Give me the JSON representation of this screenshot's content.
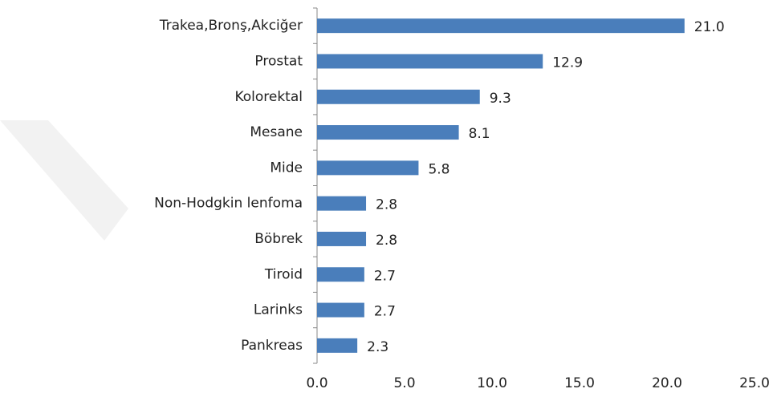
{
  "chart_data": {
    "type": "bar",
    "orientation": "horizontal",
    "categories": [
      "Trakea,Bronş,Akciğer",
      "Prostat",
      "Kolorektal",
      "Mesane",
      "Mide",
      "Non-Hodgkin lenfoma",
      "Böbrek",
      "Tiroid",
      "Larinks",
      "Pankreas"
    ],
    "values": [
      21.0,
      12.9,
      9.3,
      8.1,
      5.8,
      2.8,
      2.8,
      2.7,
      2.7,
      2.3
    ],
    "value_labels": [
      "21.0",
      "12.9",
      "9.3",
      "8.1",
      "5.8",
      "2.8",
      "2.8",
      "2.7",
      "2.7",
      "2.3"
    ],
    "color": "#4a7ebb",
    "xlim": [
      0,
      25
    ],
    "xticks": [
      {
        "value": 0,
        "label": "0.0"
      },
      {
        "value": 5,
        "label": "5.0"
      },
      {
        "value": 10,
        "label": "10.0"
      },
      {
        "value": 15,
        "label": "15.0"
      },
      {
        "value": 20,
        "label": "20.0"
      },
      {
        "value": 25,
        "label": "25.0"
      }
    ],
    "grid": false
  }
}
